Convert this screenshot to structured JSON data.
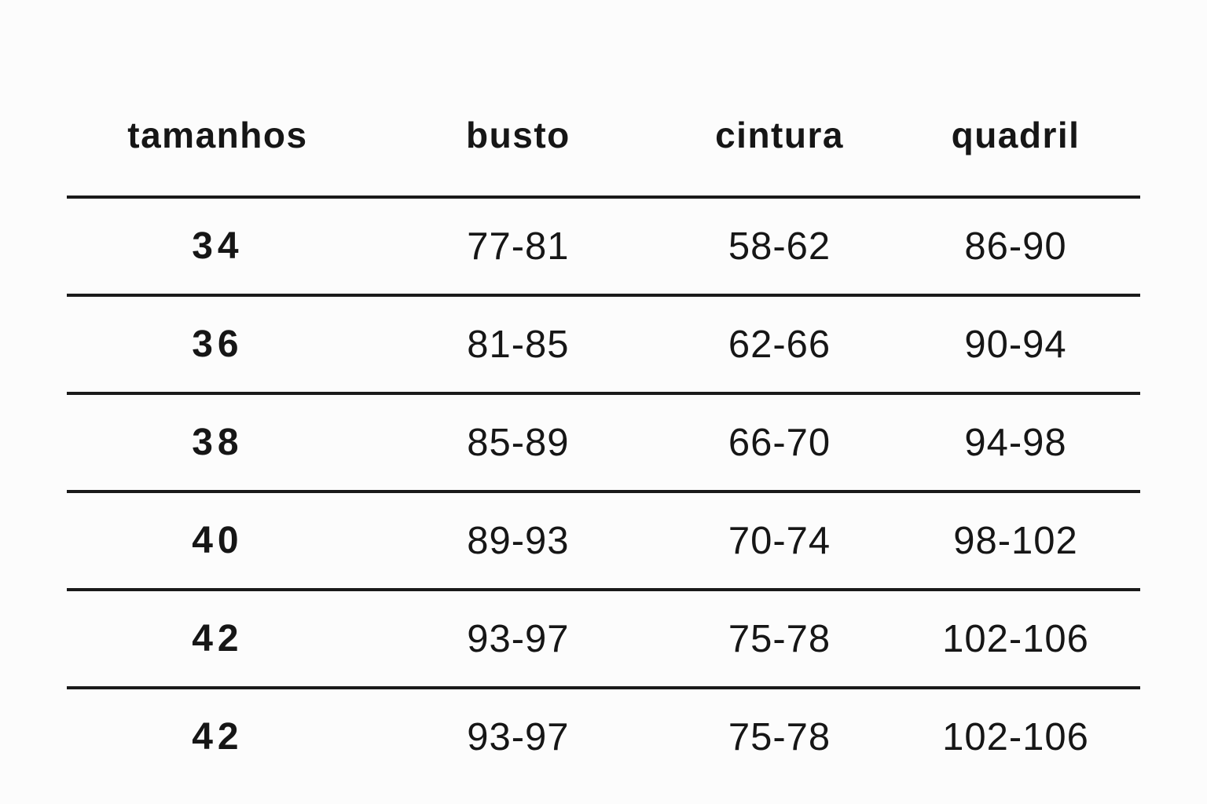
{
  "colors": {
    "background": "#fcfcfc",
    "text": "#161616",
    "rule_line": "#1a1a1a"
  },
  "chart_data": {
    "type": "table",
    "columns": [
      "tamanhos",
      "busto",
      "cintura",
      "quadril"
    ],
    "rows": [
      [
        "34",
        "77-81",
        "58-62",
        "86-90"
      ],
      [
        "36",
        "81-85",
        "62-66",
        "90-94"
      ],
      [
        "38",
        "85-89",
        "66-70",
        "94-98"
      ],
      [
        "40",
        "89-93",
        "70-74",
        "98-102"
      ],
      [
        "42",
        "93-97",
        "75-78",
        "102-106"
      ],
      [
        "42",
        "93-97",
        "75-78",
        "102-106"
      ]
    ],
    "layout": {
      "grid": "horizontal rules between rows only, no vertical lines, no outer border",
      "header_position": "top row, no rule above header"
    }
  }
}
